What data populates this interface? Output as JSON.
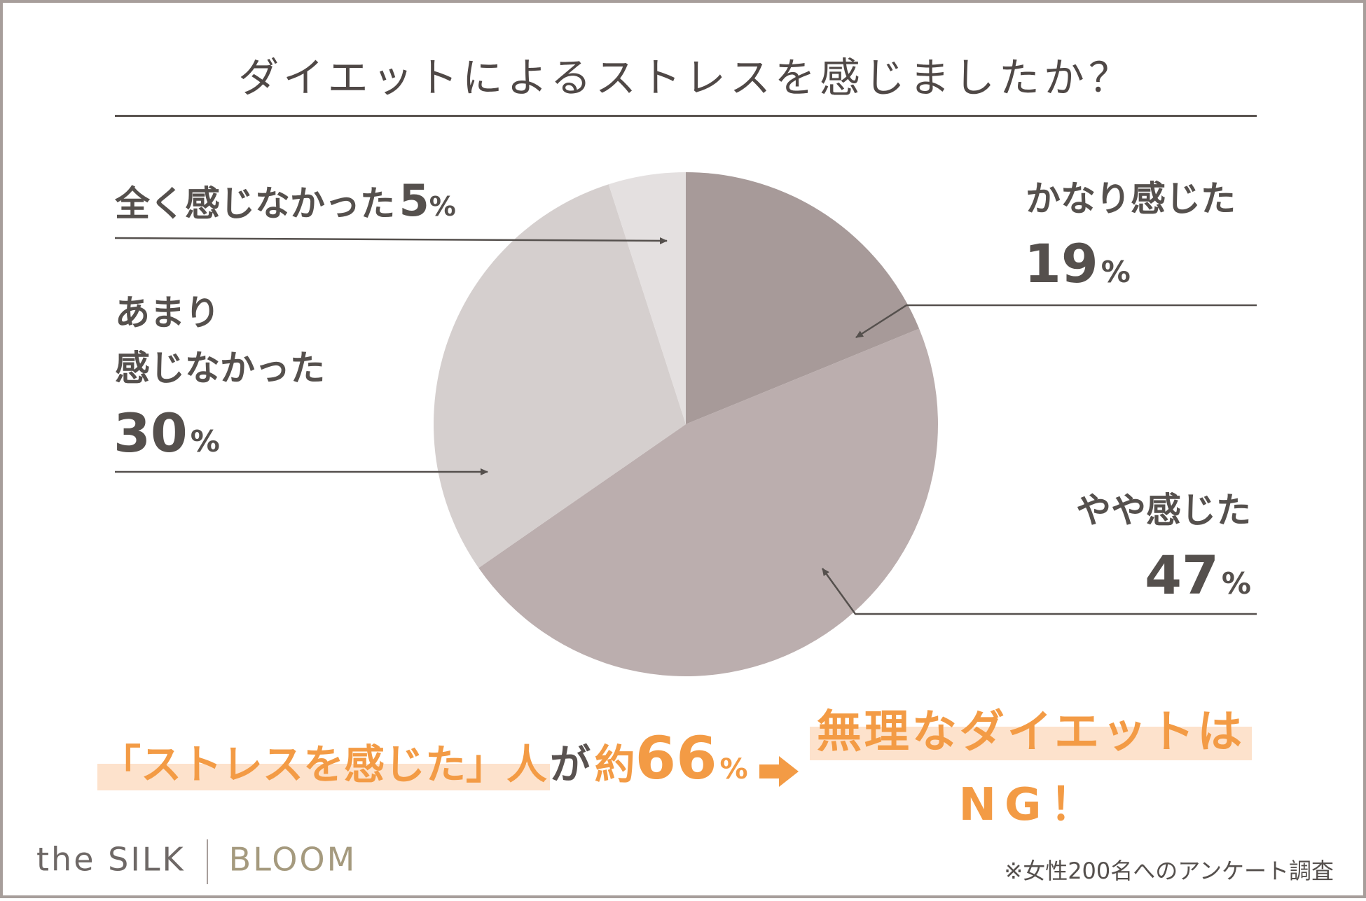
{
  "title": "ダイエットによるストレスを感じましたか？",
  "colors": {
    "slice_strong": "#a79a99",
    "slice_some": "#bbaeae",
    "slice_little": "#d5cfce",
    "slice_none": "#e4e0e0",
    "text": "#55504d",
    "accent_orange": "#f39b45",
    "highlight": "#fde2cc"
  },
  "chart_data": {
    "type": "pie",
    "title": "ダイエットによるストレスを感じましたか？",
    "slices": [
      {
        "label": "かなり感じた",
        "value": 19
      },
      {
        "label": "やや感じた",
        "value": 47
      },
      {
        "label": "あまり感じなかった",
        "value": 30
      },
      {
        "label": "全く感じなかった",
        "value": 5
      }
    ],
    "unit": "%",
    "legend": "none"
  },
  "labels": {
    "strong": {
      "name": "かなり感じた",
      "pct": "19"
    },
    "some": {
      "name": "やや感じた",
      "pct": "47"
    },
    "little": {
      "name_line1": "あまり",
      "name_line2": "感じなかった",
      "pct": "30"
    },
    "none": {
      "name": "全く感じなかった",
      "pct": "5"
    },
    "percent_sign": "%"
  },
  "summary": {
    "quote": "「ストレスを感じた」人",
    "ga": "が",
    "yaku": "約",
    "value": "66",
    "percent_sign": "%"
  },
  "conclusion": {
    "line1": "無理なダイエットは",
    "line2": "NG！"
  },
  "brand": {
    "left": "the SILK",
    "right": "BLOOM"
  },
  "footnote": "※女性200名へのアンケート調査"
}
